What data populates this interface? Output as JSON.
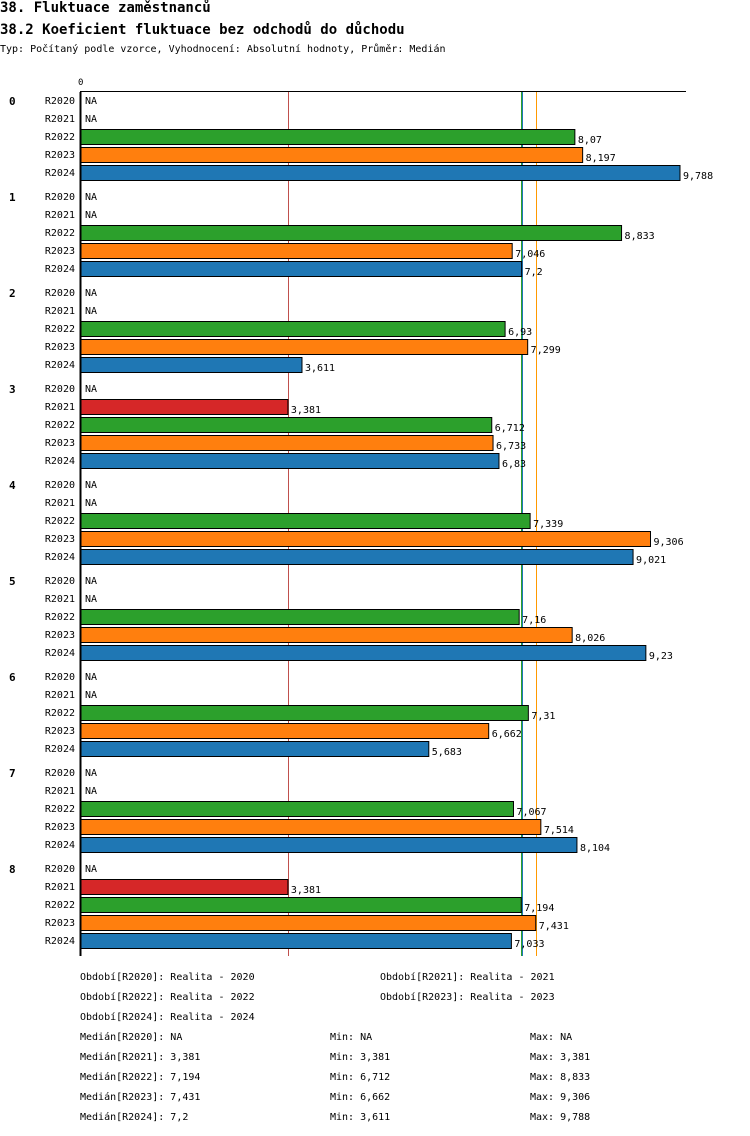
{
  "header": {
    "title": "38. Fluktuace zaměstnanců",
    "subtitle": "38.2 Koeficient fluktuace bez odchodů do důchodu",
    "info": "Typ: Počítaný podle vzorce, Vyhodnocení: Absolutní hodnoty, Průměr: Medián"
  },
  "colors": {
    "R2020": "#7f7f7f",
    "R2021": "#d62728",
    "R2022": "#2ca02c",
    "R2023": "#ff7f0e",
    "R2024": "#1f77b4",
    "axis": "#000000",
    "median_R2021": "#c0504d",
    "median_R2022": "#2ca02c",
    "median_R2023": "#ff9900",
    "median_R2024": "#1f77b4"
  },
  "chart_data": {
    "type": "bar",
    "orientation": "horizontal",
    "x_axis_label": "0",
    "xlim": [
      0,
      9.788
    ],
    "na_label": "NA",
    "series": [
      "R2020",
      "R2021",
      "R2022",
      "R2023",
      "R2024"
    ],
    "categories": [
      {
        "label": "0",
        "values": [
          null,
          null,
          8.07,
          8.197,
          9.788
        ],
        "labels": [
          "NA",
          "NA",
          "8,07",
          "8,197",
          "9,788"
        ]
      },
      {
        "label": "1",
        "values": [
          null,
          null,
          8.833,
          7.046,
          7.2
        ],
        "labels": [
          "NA",
          "NA",
          "8,833",
          "7,046",
          "7,2"
        ]
      },
      {
        "label": "2",
        "values": [
          null,
          null,
          6.93,
          7.299,
          3.611
        ],
        "labels": [
          "NA",
          "NA",
          "6,93",
          "7,299",
          "3,611"
        ]
      },
      {
        "label": "3",
        "values": [
          null,
          3.381,
          6.712,
          6.733,
          6.83
        ],
        "labels": [
          "NA",
          "3,381",
          "6,712",
          "6,733",
          "6,83"
        ]
      },
      {
        "label": "4",
        "values": [
          null,
          null,
          7.339,
          9.306,
          9.021
        ],
        "labels": [
          "NA",
          "NA",
          "7,339",
          "9,306",
          "9,021"
        ]
      },
      {
        "label": "5",
        "values": [
          null,
          null,
          7.16,
          8.026,
          9.23
        ],
        "labels": [
          "NA",
          "NA",
          "7,16",
          "8,026",
          "9,23"
        ]
      },
      {
        "label": "6",
        "values": [
          null,
          null,
          7.31,
          6.662,
          5.683
        ],
        "labels": [
          "NA",
          "NA",
          "7,31",
          "6,662",
          "5,683"
        ]
      },
      {
        "label": "7",
        "values": [
          null,
          null,
          7.067,
          7.514,
          8.104
        ],
        "labels": [
          "NA",
          "NA",
          "7,067",
          "7,514",
          "8,104"
        ]
      },
      {
        "label": "8",
        "values": [
          null,
          3.381,
          7.194,
          7.431,
          7.033
        ],
        "labels": [
          "NA",
          "3,381",
          "7,194",
          "7,431",
          "7,033"
        ]
      }
    ],
    "median_lines": [
      {
        "series": "R2021",
        "value": 3.381
      },
      {
        "series": "R2022",
        "value": 7.194
      },
      {
        "series": "R2023",
        "value": 7.431
      },
      {
        "series": "R2024",
        "value": 7.2
      }
    ]
  },
  "footer": {
    "periods": [
      "Období[R2020]: Realita - 2020",
      "Období[R2021]: Realita - 2021",
      "Období[R2022]: Realita - 2022",
      "Období[R2023]: Realita - 2023",
      "Období[R2024]: Realita - 2024"
    ],
    "stats": [
      {
        "median": "Medián[R2020]: NA",
        "min": "Min: NA",
        "max": "Max: NA"
      },
      {
        "median": "Medián[R2021]: 3,381",
        "min": "Min: 3,381",
        "max": "Max: 3,381"
      },
      {
        "median": "Medián[R2022]: 7,194",
        "min": "Min: 6,712",
        "max": "Max: 8,833"
      },
      {
        "median": "Medián[R2023]: 7,431",
        "min": "Min: 6,662",
        "max": "Max: 9,306"
      },
      {
        "median": "Medián[R2024]: 7,2",
        "min": "Min: 3,611",
        "max": "Max: 9,788"
      }
    ]
  }
}
